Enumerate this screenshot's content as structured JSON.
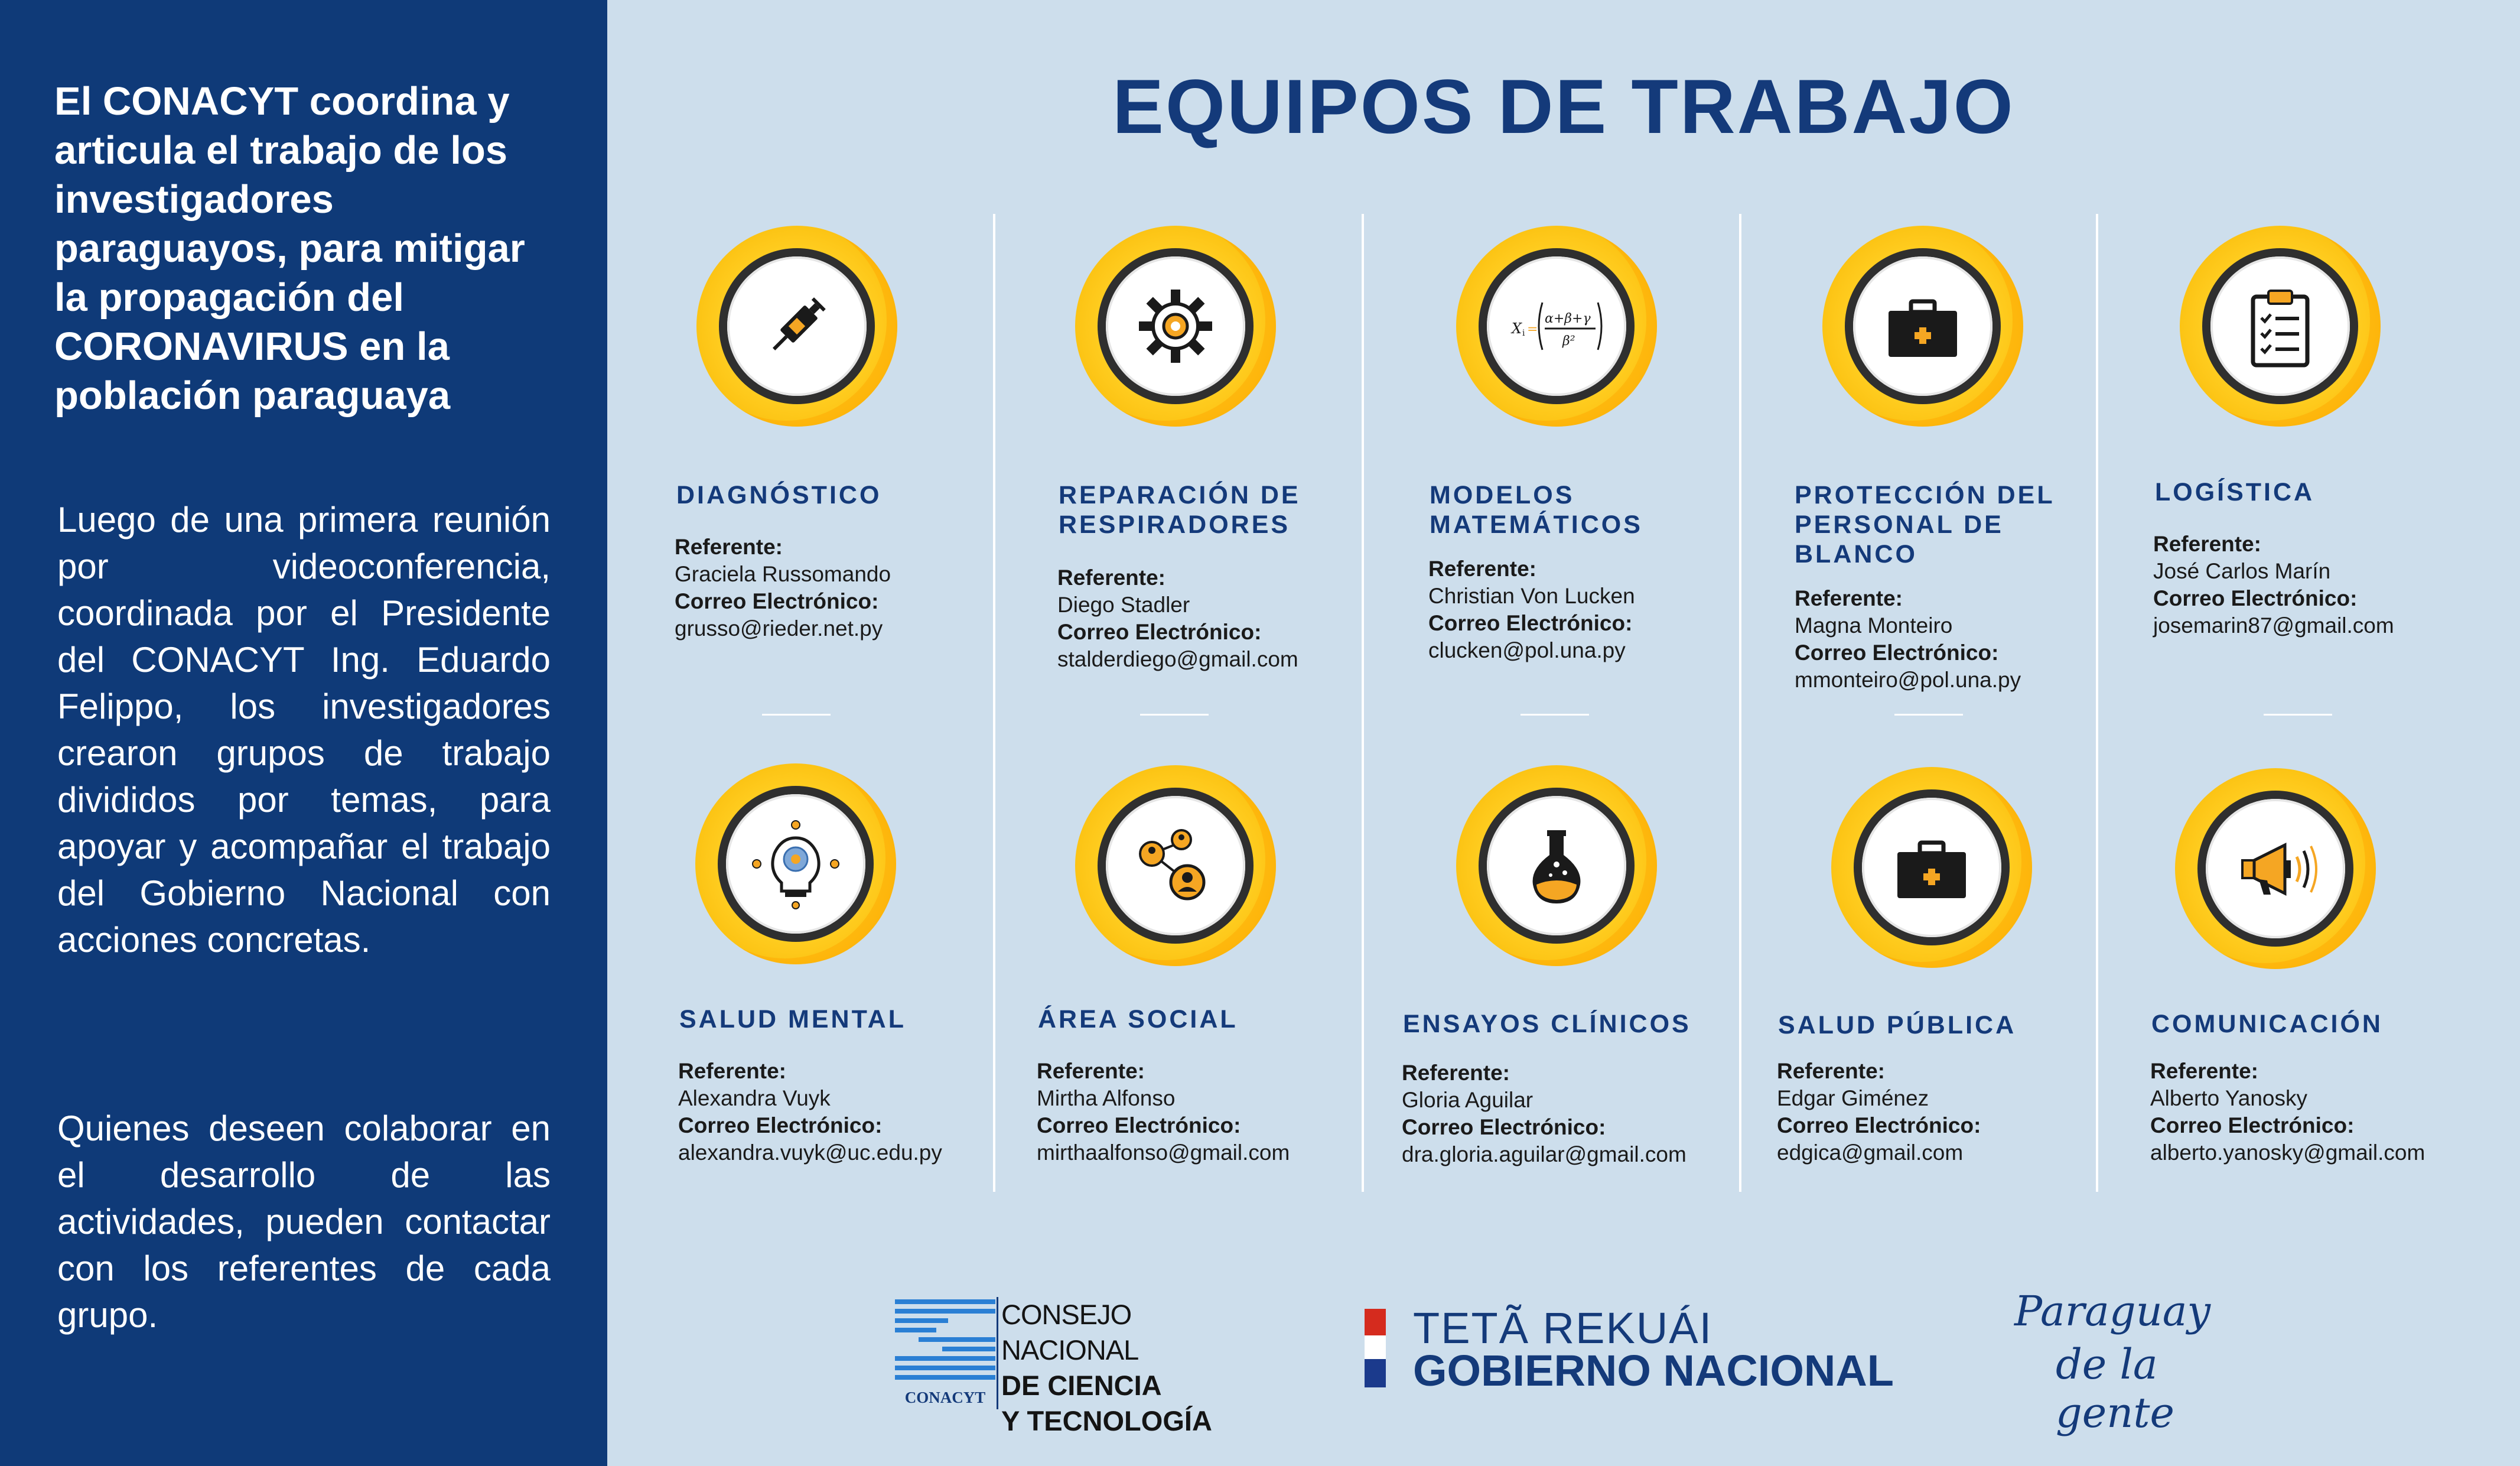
{
  "left_panel": {
    "headline": "El CONACYT coordina y articula el trabajo de los investigadores paraguayos, para mitigar la propagación del CORONAVIRUS en la población paraguaya",
    "body1": "Luego de una primera reunión por videoconferencia, coordinada por el Presidente del CONACYT Ing. Eduardo Felippo, los investigadores crearon grupos de trabajo divididos por temas, para apoyar y acompañar el trabajo del Gobierno Nacional con acciones concretas.",
    "body2": "Quienes deseen colaborar en el desarrollo de las actividades, pueden contactar con los referentes de cada grupo."
  },
  "title": "EQUIPOS DE TRABAJO",
  "labels": {
    "referente": "Referente:",
    "correo": "Correo Electrónico:"
  },
  "teams": [
    {
      "icon": "syringe-icon",
      "title": "DIAGNÓSTICO",
      "referente": "Graciela Russomando",
      "email": "grusso@rieder.net.py"
    },
    {
      "icon": "gear-icon",
      "title": "REPARACIÓN DE RESPIRADORES",
      "referente": "Diego Stadler",
      "email": "stalderdiego@gmail.com"
    },
    {
      "icon": "formula-icon",
      "title": "MODELOS MATEMÁTICOS",
      "referente": "Christian Von Lucken",
      "email": "clucken@pol.una.py",
      "formula": "Xᵢ = (α+β+γ / β²)"
    },
    {
      "icon": "medical-kit-icon",
      "title": "PROTECCIÓN DEL PERSONAL DE BLANCO",
      "referente": "Magna Monteiro",
      "email": "mmonteiro@pol.una.py"
    },
    {
      "icon": "clipboard-icon",
      "title": "LOGÍSTICA",
      "referente": "José Carlos Marín",
      "email": "josemarin87@gmail.com"
    },
    {
      "icon": "brain-bulb-icon",
      "title": "SALUD MENTAL",
      "referente": "Alexandra Vuyk",
      "email": "alexandra.vuyk@uc.edu.py"
    },
    {
      "icon": "people-network-icon",
      "title": "ÁREA SOCIAL",
      "referente": "Mirtha Alfonso",
      "email": "mirthaalfonso@gmail.com"
    },
    {
      "icon": "flask-icon",
      "title": "ENSAYOS CLÍNICOS",
      "referente": "Gloria Aguilar",
      "email": "dra.gloria.aguilar@gmail.com"
    },
    {
      "icon": "medical-kit-icon",
      "title": "SALUD PÚBLICA",
      "referente": "Edgar Giménez",
      "email": "edgica@gmail.com"
    },
    {
      "icon": "megaphone-icon",
      "title": "COMUNICACIÓN",
      "referente": "Alberto Yanosky",
      "email": "alberto.yanosky@gmail.com"
    }
  ],
  "footer": {
    "conacyt_small": "CONACYT",
    "conacyt_line1": "CONSEJO NACIONAL",
    "conacyt_line2": "DE CIENCIA",
    "conacyt_line3": "Y TECNOLOGÍA",
    "gov_line1": "TETÃ REKUÁI",
    "gov_line2": "GOBIERNO NACIONAL",
    "py_line1": "Paraguay",
    "py_line2": "de la gente"
  },
  "colors": {
    "navy": "#0f3a78",
    "background": "#cddeec",
    "title": "#143a7a",
    "accent_yellow": "#ffcc1f",
    "accent_orange": "#f5a623"
  }
}
